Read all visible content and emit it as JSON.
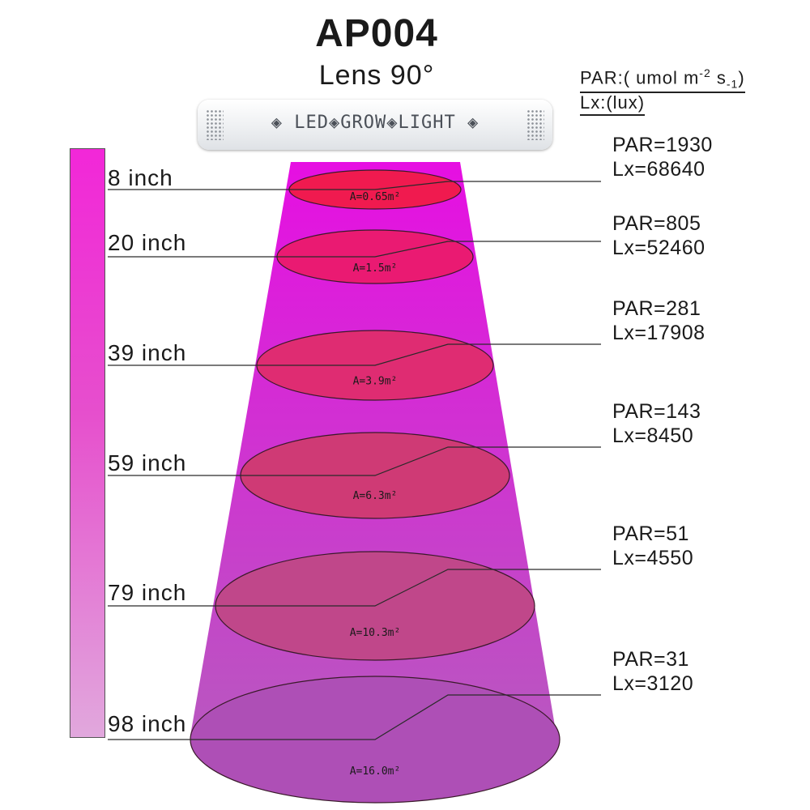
{
  "title": "AP004",
  "subtitle": "Lens 90°",
  "units": {
    "par": {
      "prefix": "PAR:( umol m",
      "exp1": "-2",
      "mid": " s",
      "exp2": "-1",
      "suffix": ")"
    },
    "lux": "Lx:(lux)"
  },
  "fixture_label": "◈ LED◈GROW◈LIGHT ◈",
  "colors": {
    "beam_top": "#e60fe2",
    "beam_bottom": "#b957c0",
    "ruler_top": "#f227d8",
    "ruler_bottom": "#e1a8dd"
  },
  "levels": [
    {
      "distance": "8 inch",
      "area": "A=0.65m²",
      "par": "PAR=1930",
      "lux": "Lx=68640",
      "ellipse_color": "#f01a4f"
    },
    {
      "distance": "20 inch",
      "area": "A=1.5m²",
      "par": "PAR=805",
      "lux": "Lx=52460",
      "ellipse_color": "#ea1a72"
    },
    {
      "distance": "39 inch",
      "area": "A=3.9m²",
      "par": "PAR=281",
      "lux": "Lx=17908",
      "ellipse_color": "#df2c72"
    },
    {
      "distance": "59 inch",
      "area": "A=6.3m²",
      "par": "PAR=143",
      "lux": "Lx=8450",
      "ellipse_color": "#cf3a75"
    },
    {
      "distance": "79 inch",
      "area": "A=10.3m²",
      "par": "PAR=51",
      "lux": "Lx=4550",
      "ellipse_color": "#c0478a"
    },
    {
      "distance": "98 inch",
      "area": "A=16.0m²",
      "par": "PAR=31",
      "lux": "Lx=3120",
      "ellipse_color": "#ae4fb6"
    }
  ]
}
